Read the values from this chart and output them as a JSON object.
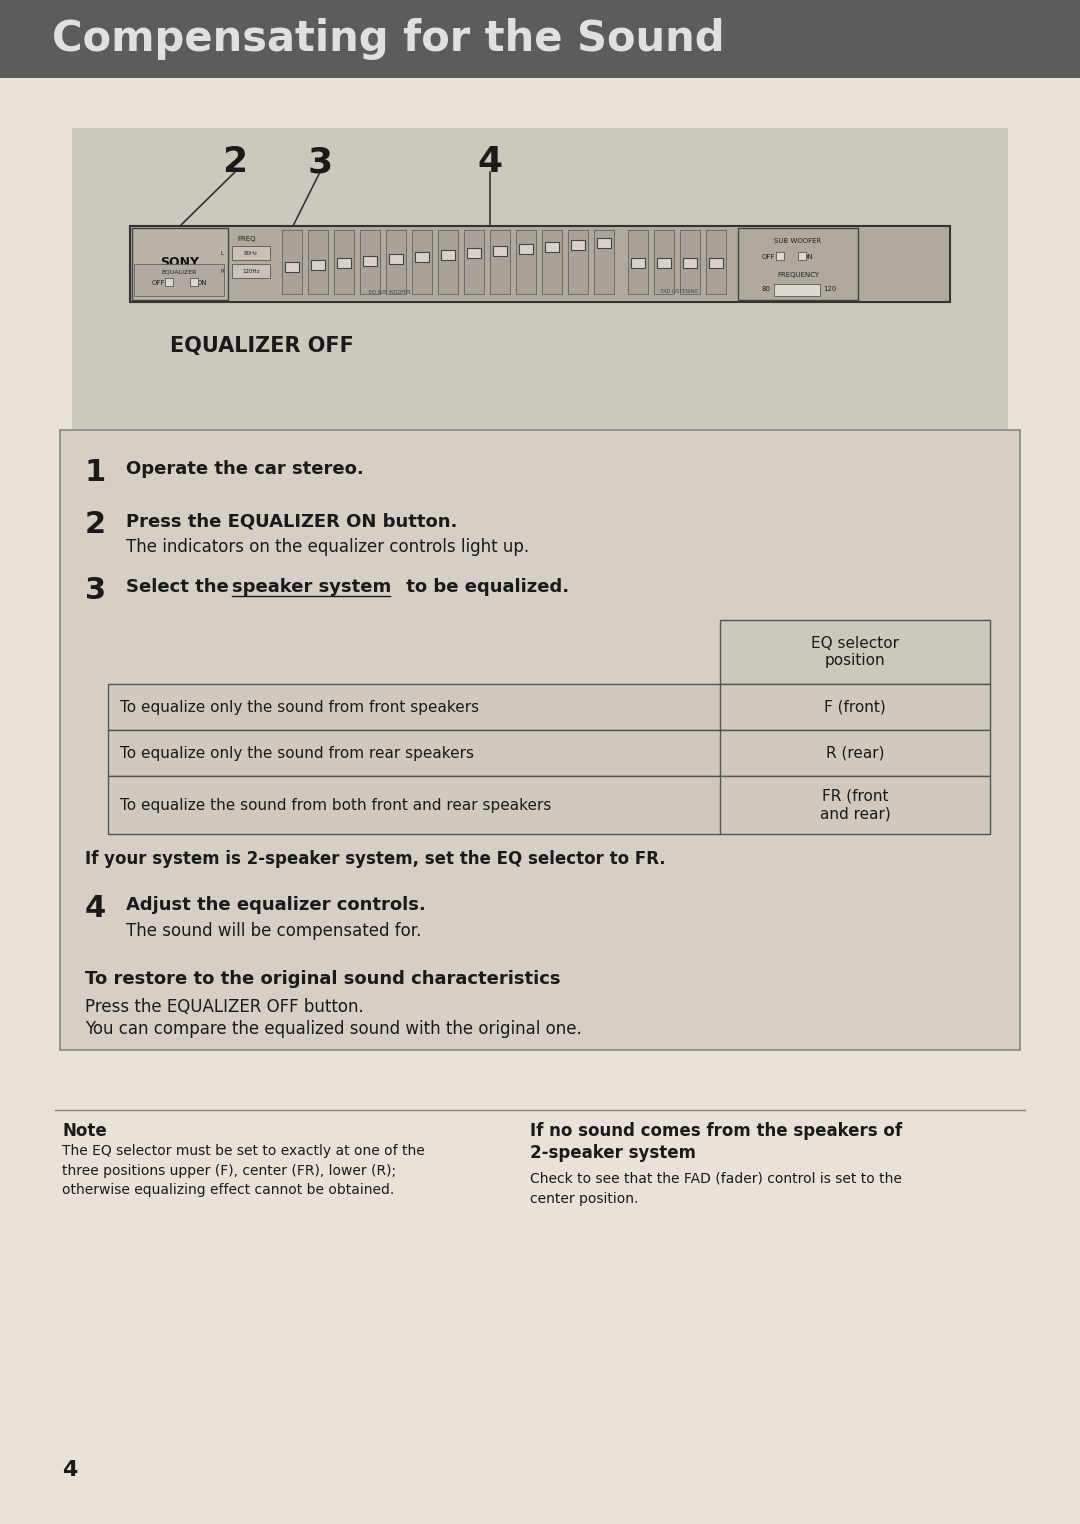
{
  "title": "Compensating for the Sound",
  "title_bg": "#5c5c5c",
  "title_color": "#e0e0e0",
  "page_bg": "#e8e2d8",
  "diagram_bg": "#ccc8be",
  "content_bg": "#d8d2c8",
  "step1": "Operate the car stereo.",
  "step2_bold": "Press the EQUALIZER ON button.",
  "step2_normal": "The indicators on the equalizer controls light up.",
  "step3_bold": "Select the ",
  "step3_bold2": "speaker system",
  "step3_normal": " to be equalized.",
  "table_header": "EQ selector\nposition",
  "table_row1_left": "To equalize only the sound from front speakers",
  "table_row1_right": "F (front)",
  "table_row2_left": "To equalize only the sound from rear speakers",
  "table_row2_right": "R (rear)",
  "table_row3_left": "To equalize the sound from both front and rear speakers",
  "table_row3_right": "FR (front\nand rear)",
  "note_bold": "If your system is 2-speaker system, set the EQ selector to FR.",
  "step4_bold": "Adjust the equalizer controls.",
  "step4_normal": "The sound will be compensated for.",
  "restore_bold": "To restore to the original sound characteristics",
  "restore_line1": "Press the EQUALIZER OFF button.",
  "restore_line2": "You can compare the equalized sound with the original one.",
  "note_title": "Note",
  "note_text": "The EQ selector must be set to exactly at one of the\nthree positions upper (F), center (FR), lower (R);\notherwise equalizing effect cannot be obtained.",
  "note2_title": "If no sound comes from the speakers of\n2-speaker system",
  "note2_text": "Check to see that the FAD (fader) control is set to the\ncenter position.",
  "page_number": "4",
  "eq_off_label": "EQUALIZER OFF",
  "diagram_numbers": [
    "2",
    "3",
    "4"
  ]
}
